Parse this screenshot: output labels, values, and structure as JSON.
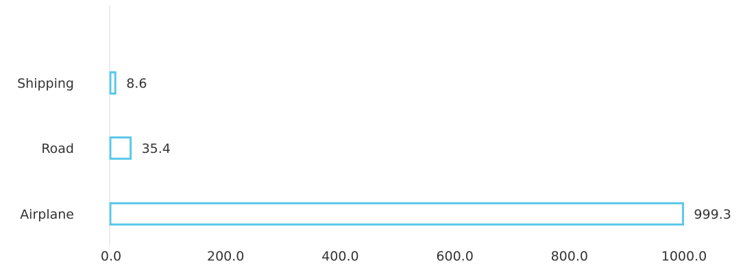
{
  "chart_data": {
    "type": "bar",
    "orientation": "horizontal",
    "categories": [
      "Shipping",
      "Road",
      "Airplane"
    ],
    "values": [
      8.6,
      35.4,
      999.3
    ],
    "value_labels": [
      "8.6",
      "35.4",
      "999.3"
    ],
    "xlim": [
      0,
      1000
    ],
    "x_ticks": [
      "0.0",
      "200.0",
      "400.0",
      "600.0",
      "800.0",
      "1000.0"
    ],
    "x_tick_values": [
      0,
      200,
      400,
      600,
      800,
      1000
    ],
    "title": "",
    "xlabel": "",
    "ylabel": "",
    "grid": false,
    "legend": "none",
    "bar_style": "outline",
    "bar_color": "#5bc8e8",
    "axis_color": "#d9d9d9"
  }
}
